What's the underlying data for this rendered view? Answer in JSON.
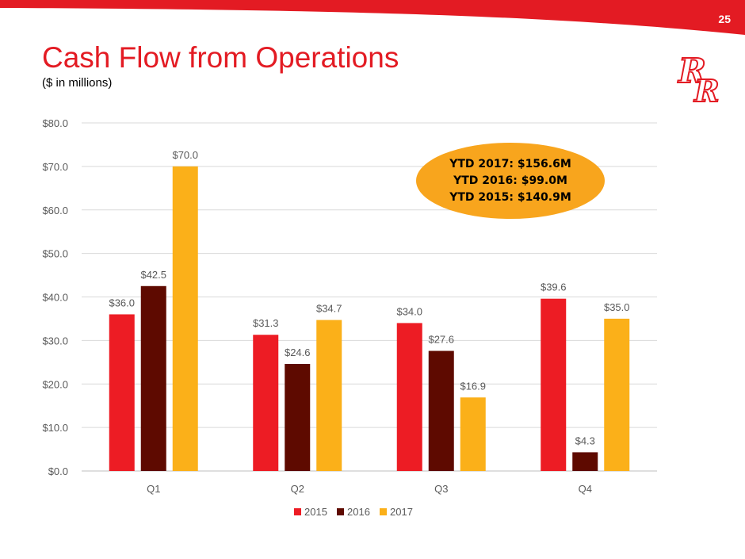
{
  "slide": {
    "page_number": "25",
    "title": "Cash Flow from Operations",
    "subtitle": "($ in millions)",
    "logo": "RR"
  },
  "colors": {
    "brand_red": "#e31b23",
    "series_2015": "#ed1c24",
    "series_2016": "#5e0a00",
    "series_2017": "#fbb019",
    "callout": "#f8a51d"
  },
  "callout": {
    "lines": [
      "YTD 2017: $156.6M",
      "YTD 2016: $99.0M",
      "YTD 2015: $140.9M"
    ]
  },
  "chart_data": {
    "type": "bar",
    "title": "",
    "xlabel": "",
    "ylabel": "",
    "categories": [
      "Q1",
      "Q2",
      "Q3",
      "Q4"
    ],
    "series": [
      {
        "name": "2015",
        "values": [
          36.0,
          31.3,
          34.0,
          39.6
        ]
      },
      {
        "name": "2016",
        "values": [
          42.5,
          24.6,
          27.6,
          4.3
        ]
      },
      {
        "name": "2017",
        "values": [
          70.0,
          34.7,
          16.9,
          35.0
        ]
      }
    ],
    "data_labels": [
      [
        "$36.0",
        "$31.3",
        "$34.0",
        "$39.6"
      ],
      [
        "$42.5",
        "$24.6",
        "$27.6",
        "$4.3"
      ],
      [
        "$70.0",
        "$34.7",
        "$16.9",
        "$35.0"
      ]
    ],
    "y_ticks": [
      "$0.0",
      "$10.0",
      "$20.0",
      "$30.0",
      "$40.0",
      "$50.0",
      "$60.0",
      "$70.0",
      "$80.0"
    ],
    "ylim": [
      0,
      80
    ],
    "y_tick_step": 10,
    "grid": true,
    "legend_position": "bottom"
  }
}
